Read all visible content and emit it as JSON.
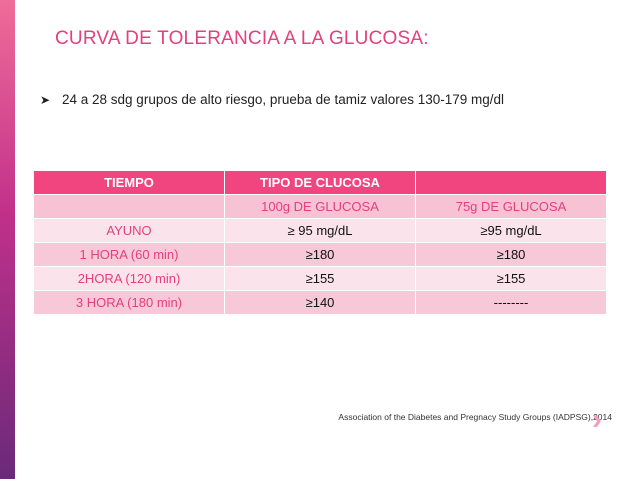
{
  "header": {
    "title": "CURVA DE TOLERANCIA A LA GLUCOSA:"
  },
  "bullet": "24 a 28 sdg grupos de alto riesgo, prueba de tamiz valores 130-179 mg/dl",
  "table": {
    "header": [
      "TIEMPO",
      "TIPO DE CLUCOSA"
    ],
    "subheader": [
      "100g DE GLUCOSA",
      "75g DE GLUCOSA"
    ],
    "rows": [
      [
        "AYUNO",
        "≥ 95 mg/dL",
        "≥95 mg/dL"
      ],
      [
        "1 HORA (60 min)",
        "≥180",
        "≥180"
      ],
      [
        "2HORA (120 min)",
        "≥155",
        "≥155"
      ],
      [
        "3 HORA (180 min)",
        "≥140",
        "--------"
      ]
    ]
  },
  "citation": "Association of the Diabetes and Pregnacy Study Groups (IADPSG),2014"
}
